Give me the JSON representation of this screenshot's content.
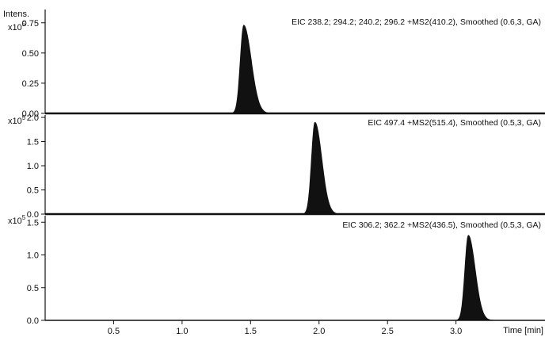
{
  "chart_data": {
    "type": "area",
    "y_axis_label": "Intens.",
    "x_axis_label": "Time [min]",
    "x_ticks": [
      "0.5",
      "1.0",
      "1.5",
      "2.0",
      "2.5",
      "3.0"
    ],
    "x_range": [
      0,
      3.65
    ],
    "panels": [
      {
        "title": "EIC 238.2; 294.2; 240.2; 296.2 +MS2(410.2), Smoothed (0.6,3, GA)",
        "scale_label": "x10^5",
        "y_ticks": [
          "0.00",
          "0.25",
          "0.50",
          "0.75"
        ],
        "y_range": [
          0,
          0.86
        ],
        "peak": {
          "apex_time": 1.45,
          "apex_intensity": 0.73,
          "width_left": 0.025,
          "width_right": 0.055
        }
      },
      {
        "title": "EIC 497.4 +MS2(515.4), Smoothed (0.5,3, GA)",
        "scale_label": "x10^5",
        "y_ticks": [
          "0.0",
          "0.5",
          "1.0",
          "1.5",
          "2.0"
        ],
        "y_range": [
          0,
          2.05
        ],
        "peak": {
          "apex_time": 1.97,
          "apex_intensity": 1.9,
          "width_left": 0.025,
          "width_right": 0.05
        }
      },
      {
        "title": "EIC 306.2; 362.2 +MS2(436.5), Smoothed (0.5,3, GA)",
        "scale_label": "x10^5",
        "y_ticks": [
          "0.0",
          "0.5",
          "1.0",
          "1.5"
        ],
        "y_range": [
          0,
          1.6
        ],
        "peak": {
          "apex_time": 3.09,
          "apex_intensity": 1.3,
          "width_left": 0.025,
          "width_right": 0.05
        }
      }
    ]
  }
}
